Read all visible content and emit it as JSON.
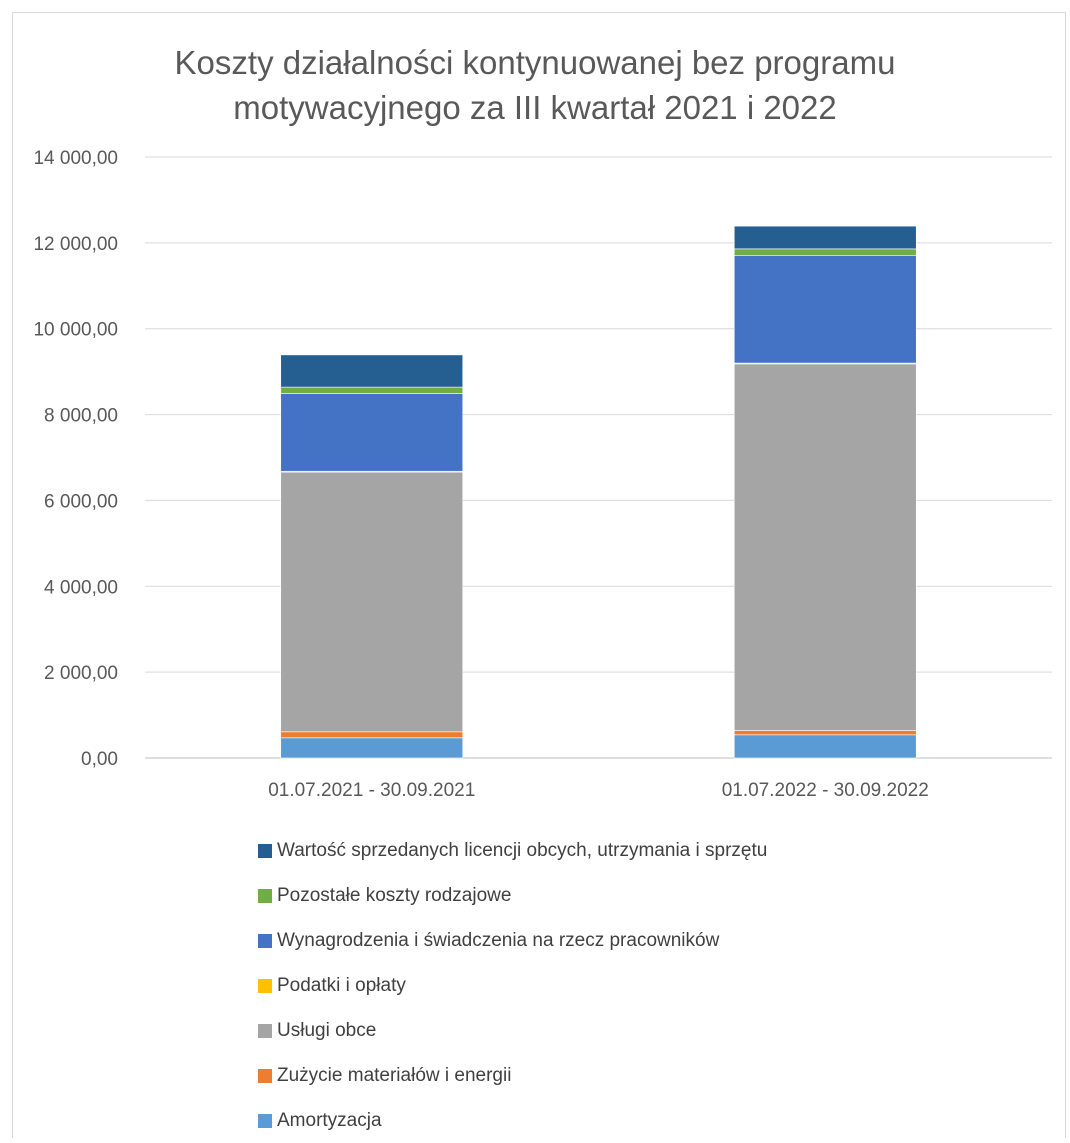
{
  "chart_data": {
    "type": "bar",
    "stacked": true,
    "title": "Koszty działalności kontynuowanej bez programu motywacyjnego za III kwartał 2021 i 2022",
    "title_lines": [
      "Koszty działalności kontynuowanej bez programu",
      "motywacyjnego za III kwartał 2021 i 2022"
    ],
    "categories": [
      "01.07.2021 - 30.09.2021",
      "01.07.2022 - 30.09.2022"
    ],
    "ylim": [
      0,
      14000
    ],
    "yticks": [
      {
        "value": 0,
        "label": "0,00"
      },
      {
        "value": 2000,
        "label": "2 000,00"
      },
      {
        "value": 4000,
        "label": "4 000,00"
      },
      {
        "value": 6000,
        "label": "6 000,00"
      },
      {
        "value": 8000,
        "label": "8 000,00"
      },
      {
        "value": 10000,
        "label": "10 000,00"
      },
      {
        "value": 12000,
        "label": "12 000,00"
      },
      {
        "value": 14000,
        "label": "14 000,00"
      }
    ],
    "grid": true,
    "legend_position": "bottom",
    "series": [
      {
        "name": "Amortyzacja",
        "color": "#5b9bd5",
        "values": [
          470,
          540
        ]
      },
      {
        "name": "Zużycie materiałów i energii",
        "color": "#ed7d31",
        "values": [
          140,
          100
        ]
      },
      {
        "name": "Usługi obce",
        "color": "#a5a5a5",
        "values": [
          6050,
          8540
        ]
      },
      {
        "name": "Podatki i opłaty",
        "color": "#ffc000",
        "values": [
          20,
          20
        ]
      },
      {
        "name": "Wynagrodzenia i świadczenia na rzecz pracowników",
        "color": "#4472c4",
        "values": [
          1810,
          2510
        ]
      },
      {
        "name": "Pozostałe koszty rodzajowe",
        "color": "#70ad47",
        "values": [
          150,
          150
        ]
      },
      {
        "name": "Wartość sprzedanych licencji obcych, utrzymania i sprzętu",
        "color": "#255e91",
        "values": [
          750,
          530
        ]
      }
    ]
  }
}
